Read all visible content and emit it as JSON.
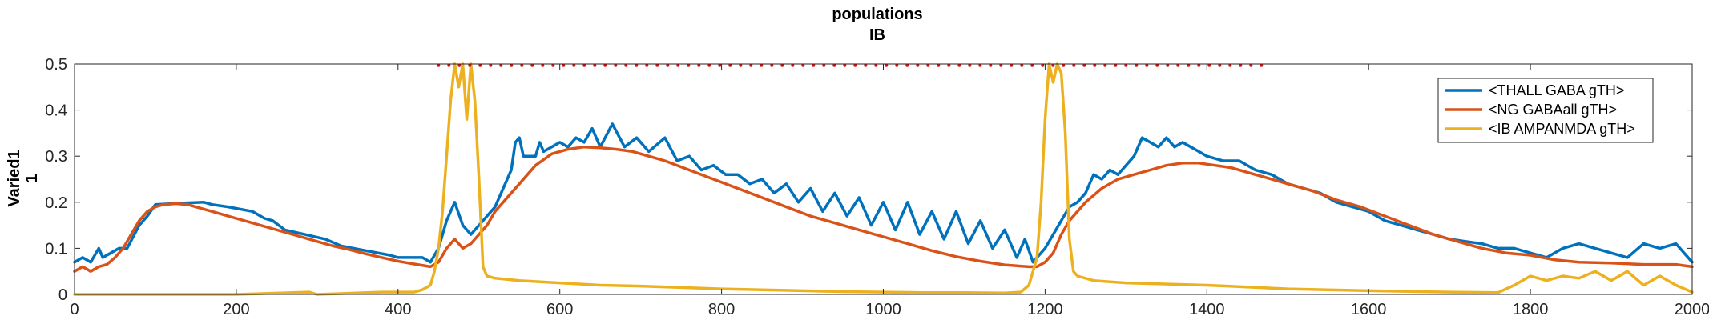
{
  "chart_data": {
    "type": "line",
    "title": [
      "populations",
      "IB"
    ],
    "ylabel": [
      "Varied1",
      "1"
    ],
    "xlabel": "",
    "xlim": [
      0,
      2000
    ],
    "ylim": [
      0,
      0.5
    ],
    "xticks": [
      0,
      200,
      400,
      600,
      800,
      1000,
      1200,
      1400,
      1600,
      1800,
      2000
    ],
    "xtick_labels": [
      "0",
      "200",
      "400",
      "600",
      "800",
      "1000",
      "1200",
      "1400",
      "1600",
      "1800",
      "2000"
    ],
    "yticks": [
      0,
      0.1,
      0.2,
      0.3,
      0.4,
      0.5
    ],
    "ytick_labels": [
      "0",
      "0.1",
      "0.2",
      "0.3",
      "0.4",
      "0.5"
    ],
    "grid": false,
    "legend_position": "top-right",
    "series": [
      {
        "name": "<THALL GABA gTH>",
        "color": "#0072BD",
        "points": [
          [
            0,
            0.07
          ],
          [
            10,
            0.08
          ],
          [
            20,
            0.07
          ],
          [
            30,
            0.1
          ],
          [
            35,
            0.08
          ],
          [
            45,
            0.09
          ],
          [
            55,
            0.1
          ],
          [
            65,
            0.1
          ],
          [
            80,
            0.15
          ],
          [
            90,
            0.17
          ],
          [
            100,
            0.195
          ],
          [
            130,
            0.198
          ],
          [
            160,
            0.2
          ],
          [
            170,
            0.195
          ],
          [
            190,
            0.19
          ],
          [
            220,
            0.18
          ],
          [
            235,
            0.165
          ],
          [
            245,
            0.16
          ],
          [
            260,
            0.14
          ],
          [
            285,
            0.13
          ],
          [
            310,
            0.12
          ],
          [
            330,
            0.105
          ],
          [
            360,
            0.095
          ],
          [
            390,
            0.085
          ],
          [
            400,
            0.08
          ],
          [
            430,
            0.08
          ],
          [
            440,
            0.07
          ],
          [
            450,
            0.1
          ],
          [
            460,
            0.16
          ],
          [
            470,
            0.2
          ],
          [
            480,
            0.15
          ],
          [
            490,
            0.13
          ],
          [
            495,
            0.14
          ],
          [
            500,
            0.15
          ],
          [
            510,
            0.17
          ],
          [
            520,
            0.19
          ],
          [
            530,
            0.23
          ],
          [
            540,
            0.27
          ],
          [
            545,
            0.33
          ],
          [
            550,
            0.34
          ],
          [
            555,
            0.3
          ],
          [
            560,
            0.3
          ],
          [
            570,
            0.3
          ],
          [
            575,
            0.33
          ],
          [
            580,
            0.31
          ],
          [
            590,
            0.32
          ],
          [
            600,
            0.33
          ],
          [
            610,
            0.32
          ],
          [
            620,
            0.34
          ],
          [
            630,
            0.33
          ],
          [
            640,
            0.36
          ],
          [
            650,
            0.32
          ],
          [
            665,
            0.37
          ],
          [
            680,
            0.32
          ],
          [
            695,
            0.34
          ],
          [
            710,
            0.31
          ],
          [
            730,
            0.34
          ],
          [
            745,
            0.29
          ],
          [
            760,
            0.3
          ],
          [
            775,
            0.27
          ],
          [
            790,
            0.28
          ],
          [
            805,
            0.26
          ],
          [
            820,
            0.26
          ],
          [
            835,
            0.24
          ],
          [
            850,
            0.25
          ],
          [
            865,
            0.22
          ],
          [
            880,
            0.24
          ],
          [
            895,
            0.2
          ],
          [
            910,
            0.23
          ],
          [
            925,
            0.18
          ],
          [
            940,
            0.22
          ],
          [
            955,
            0.17
          ],
          [
            970,
            0.21
          ],
          [
            985,
            0.15
          ],
          [
            1000,
            0.2
          ],
          [
            1015,
            0.14
          ],
          [
            1030,
            0.2
          ],
          [
            1045,
            0.13
          ],
          [
            1060,
            0.18
          ],
          [
            1075,
            0.12
          ],
          [
            1090,
            0.18
          ],
          [
            1105,
            0.11
          ],
          [
            1120,
            0.16
          ],
          [
            1135,
            0.1
          ],
          [
            1150,
            0.14
          ],
          [
            1165,
            0.08
          ],
          [
            1175,
            0.12
          ],
          [
            1185,
            0.07
          ],
          [
            1190,
            0.08
          ],
          [
            1200,
            0.1
          ],
          [
            1210,
            0.13
          ],
          [
            1220,
            0.16
          ],
          [
            1230,
            0.19
          ],
          [
            1240,
            0.2
          ],
          [
            1250,
            0.22
          ],
          [
            1260,
            0.26
          ],
          [
            1270,
            0.25
          ],
          [
            1280,
            0.27
          ],
          [
            1290,
            0.26
          ],
          [
            1300,
            0.28
          ],
          [
            1310,
            0.3
          ],
          [
            1320,
            0.34
          ],
          [
            1330,
            0.33
          ],
          [
            1340,
            0.32
          ],
          [
            1350,
            0.34
          ],
          [
            1360,
            0.32
          ],
          [
            1370,
            0.33
          ],
          [
            1380,
            0.32
          ],
          [
            1390,
            0.31
          ],
          [
            1400,
            0.3
          ],
          [
            1420,
            0.29
          ],
          [
            1440,
            0.29
          ],
          [
            1460,
            0.27
          ],
          [
            1480,
            0.26
          ],
          [
            1500,
            0.24
          ],
          [
            1520,
            0.23
          ],
          [
            1540,
            0.22
          ],
          [
            1560,
            0.2
          ],
          [
            1580,
            0.19
          ],
          [
            1600,
            0.18
          ],
          [
            1620,
            0.16
          ],
          [
            1640,
            0.15
          ],
          [
            1660,
            0.14
          ],
          [
            1680,
            0.13
          ],
          [
            1700,
            0.12
          ],
          [
            1720,
            0.115
          ],
          [
            1740,
            0.11
          ],
          [
            1760,
            0.1
          ],
          [
            1780,
            0.1
          ],
          [
            1800,
            0.09
          ],
          [
            1820,
            0.08
          ],
          [
            1840,
            0.1
          ],
          [
            1860,
            0.11
          ],
          [
            1880,
            0.1
          ],
          [
            1900,
            0.09
          ],
          [
            1920,
            0.08
          ],
          [
            1940,
            0.11
          ],
          [
            1960,
            0.1
          ],
          [
            1980,
            0.11
          ],
          [
            1990,
            0.09
          ],
          [
            2000,
            0.07
          ]
        ]
      },
      {
        "name": "<NG GABAall gTH>",
        "color": "#D95319",
        "points": [
          [
            0,
            0.05
          ],
          [
            10,
            0.06
          ],
          [
            20,
            0.05
          ],
          [
            30,
            0.06
          ],
          [
            40,
            0.065
          ],
          [
            50,
            0.08
          ],
          [
            60,
            0.1
          ],
          [
            70,
            0.13
          ],
          [
            80,
            0.16
          ],
          [
            90,
            0.18
          ],
          [
            100,
            0.19
          ],
          [
            110,
            0.195
          ],
          [
            125,
            0.197
          ],
          [
            140,
            0.195
          ],
          [
            160,
            0.185
          ],
          [
            180,
            0.175
          ],
          [
            200,
            0.165
          ],
          [
            220,
            0.155
          ],
          [
            240,
            0.145
          ],
          [
            260,
            0.135
          ],
          [
            280,
            0.125
          ],
          [
            300,
            0.115
          ],
          [
            320,
            0.105
          ],
          [
            340,
            0.097
          ],
          [
            360,
            0.088
          ],
          [
            380,
            0.08
          ],
          [
            400,
            0.072
          ],
          [
            420,
            0.066
          ],
          [
            440,
            0.06
          ],
          [
            450,
            0.07
          ],
          [
            460,
            0.1
          ],
          [
            470,
            0.12
          ],
          [
            480,
            0.1
          ],
          [
            490,
            0.11
          ],
          [
            500,
            0.13
          ],
          [
            510,
            0.15
          ],
          [
            520,
            0.18
          ],
          [
            530,
            0.2
          ],
          [
            550,
            0.24
          ],
          [
            570,
            0.28
          ],
          [
            590,
            0.305
          ],
          [
            610,
            0.315
          ],
          [
            630,
            0.32
          ],
          [
            650,
            0.318
          ],
          [
            670,
            0.315
          ],
          [
            690,
            0.31
          ],
          [
            710,
            0.3
          ],
          [
            730,
            0.29
          ],
          [
            760,
            0.27
          ],
          [
            790,
            0.25
          ],
          [
            820,
            0.23
          ],
          [
            850,
            0.21
          ],
          [
            880,
            0.19
          ],
          [
            910,
            0.17
          ],
          [
            940,
            0.155
          ],
          [
            970,
            0.14
          ],
          [
            1000,
            0.125
          ],
          [
            1030,
            0.11
          ],
          [
            1060,
            0.095
          ],
          [
            1090,
            0.082
          ],
          [
            1120,
            0.072
          ],
          [
            1150,
            0.064
          ],
          [
            1180,
            0.06
          ],
          [
            1190,
            0.06
          ],
          [
            1200,
            0.07
          ],
          [
            1210,
            0.09
          ],
          [
            1220,
            0.13
          ],
          [
            1230,
            0.16
          ],
          [
            1240,
            0.18
          ],
          [
            1250,
            0.2
          ],
          [
            1270,
            0.23
          ],
          [
            1290,
            0.25
          ],
          [
            1310,
            0.26
          ],
          [
            1330,
            0.27
          ],
          [
            1350,
            0.28
          ],
          [
            1370,
            0.285
          ],
          [
            1390,
            0.285
          ],
          [
            1410,
            0.28
          ],
          [
            1430,
            0.275
          ],
          [
            1450,
            0.265
          ],
          [
            1470,
            0.255
          ],
          [
            1500,
            0.24
          ],
          [
            1530,
            0.225
          ],
          [
            1560,
            0.205
          ],
          [
            1590,
            0.19
          ],
          [
            1620,
            0.17
          ],
          [
            1650,
            0.15
          ],
          [
            1680,
            0.13
          ],
          [
            1710,
            0.115
          ],
          [
            1740,
            0.1
          ],
          [
            1770,
            0.09
          ],
          [
            1800,
            0.085
          ],
          [
            1830,
            0.075
          ],
          [
            1860,
            0.07
          ],
          [
            1900,
            0.068
          ],
          [
            1940,
            0.065
          ],
          [
            1980,
            0.065
          ],
          [
            2000,
            0.06
          ]
        ]
      },
      {
        "name": "<IB AMPANMDA gTH>",
        "color": "#EDB120",
        "points": [
          [
            0,
            0.0
          ],
          [
            100,
            0.0
          ],
          [
            200,
            0.0
          ],
          [
            290,
            0.005
          ],
          [
            300,
            0.0
          ],
          [
            380,
            0.005
          ],
          [
            420,
            0.005
          ],
          [
            430,
            0.01
          ],
          [
            440,
            0.02
          ],
          [
            445,
            0.05
          ],
          [
            450,
            0.1
          ],
          [
            455,
            0.18
          ],
          [
            460,
            0.3
          ],
          [
            465,
            0.42
          ],
          [
            470,
            0.5
          ],
          [
            475,
            0.45
          ],
          [
            480,
            0.5
          ],
          [
            485,
            0.38
          ],
          [
            490,
            0.5
          ],
          [
            495,
            0.42
          ],
          [
            500,
            0.25
          ],
          [
            505,
            0.06
          ],
          [
            510,
            0.04
          ],
          [
            520,
            0.035
          ],
          [
            550,
            0.03
          ],
          [
            600,
            0.025
          ],
          [
            650,
            0.02
          ],
          [
            700,
            0.018
          ],
          [
            750,
            0.015
          ],
          [
            800,
            0.012
          ],
          [
            850,
            0.01
          ],
          [
            900,
            0.008
          ],
          [
            950,
            0.006
          ],
          [
            1000,
            0.005
          ],
          [
            1050,
            0.004
          ],
          [
            1100,
            0.004
          ],
          [
            1150,
            0.003
          ],
          [
            1170,
            0.005
          ],
          [
            1180,
            0.02
          ],
          [
            1190,
            0.08
          ],
          [
            1195,
            0.2
          ],
          [
            1200,
            0.38
          ],
          [
            1205,
            0.5
          ],
          [
            1210,
            0.46
          ],
          [
            1215,
            0.5
          ],
          [
            1220,
            0.48
          ],
          [
            1225,
            0.35
          ],
          [
            1230,
            0.12
          ],
          [
            1235,
            0.05
          ],
          [
            1240,
            0.04
          ],
          [
            1260,
            0.03
          ],
          [
            1300,
            0.025
          ],
          [
            1400,
            0.02
          ],
          [
            1500,
            0.012
          ],
          [
            1600,
            0.008
          ],
          [
            1700,
            0.005
          ],
          [
            1760,
            0.004
          ],
          [
            1780,
            0.02
          ],
          [
            1800,
            0.04
          ],
          [
            1820,
            0.03
          ],
          [
            1840,
            0.04
          ],
          [
            1860,
            0.035
          ],
          [
            1880,
            0.05
          ],
          [
            1900,
            0.03
          ],
          [
            1920,
            0.05
          ],
          [
            1940,
            0.02
          ],
          [
            1960,
            0.04
          ],
          [
            1980,
            0.02
          ],
          [
            2000,
            0.005
          ]
        ]
      },
      {
        "name": "",
        "color": "#FF0000",
        "style": "dotted",
        "points": [
          [
            450,
            0.497
          ],
          [
            1480,
            0.497
          ]
        ]
      }
    ]
  }
}
